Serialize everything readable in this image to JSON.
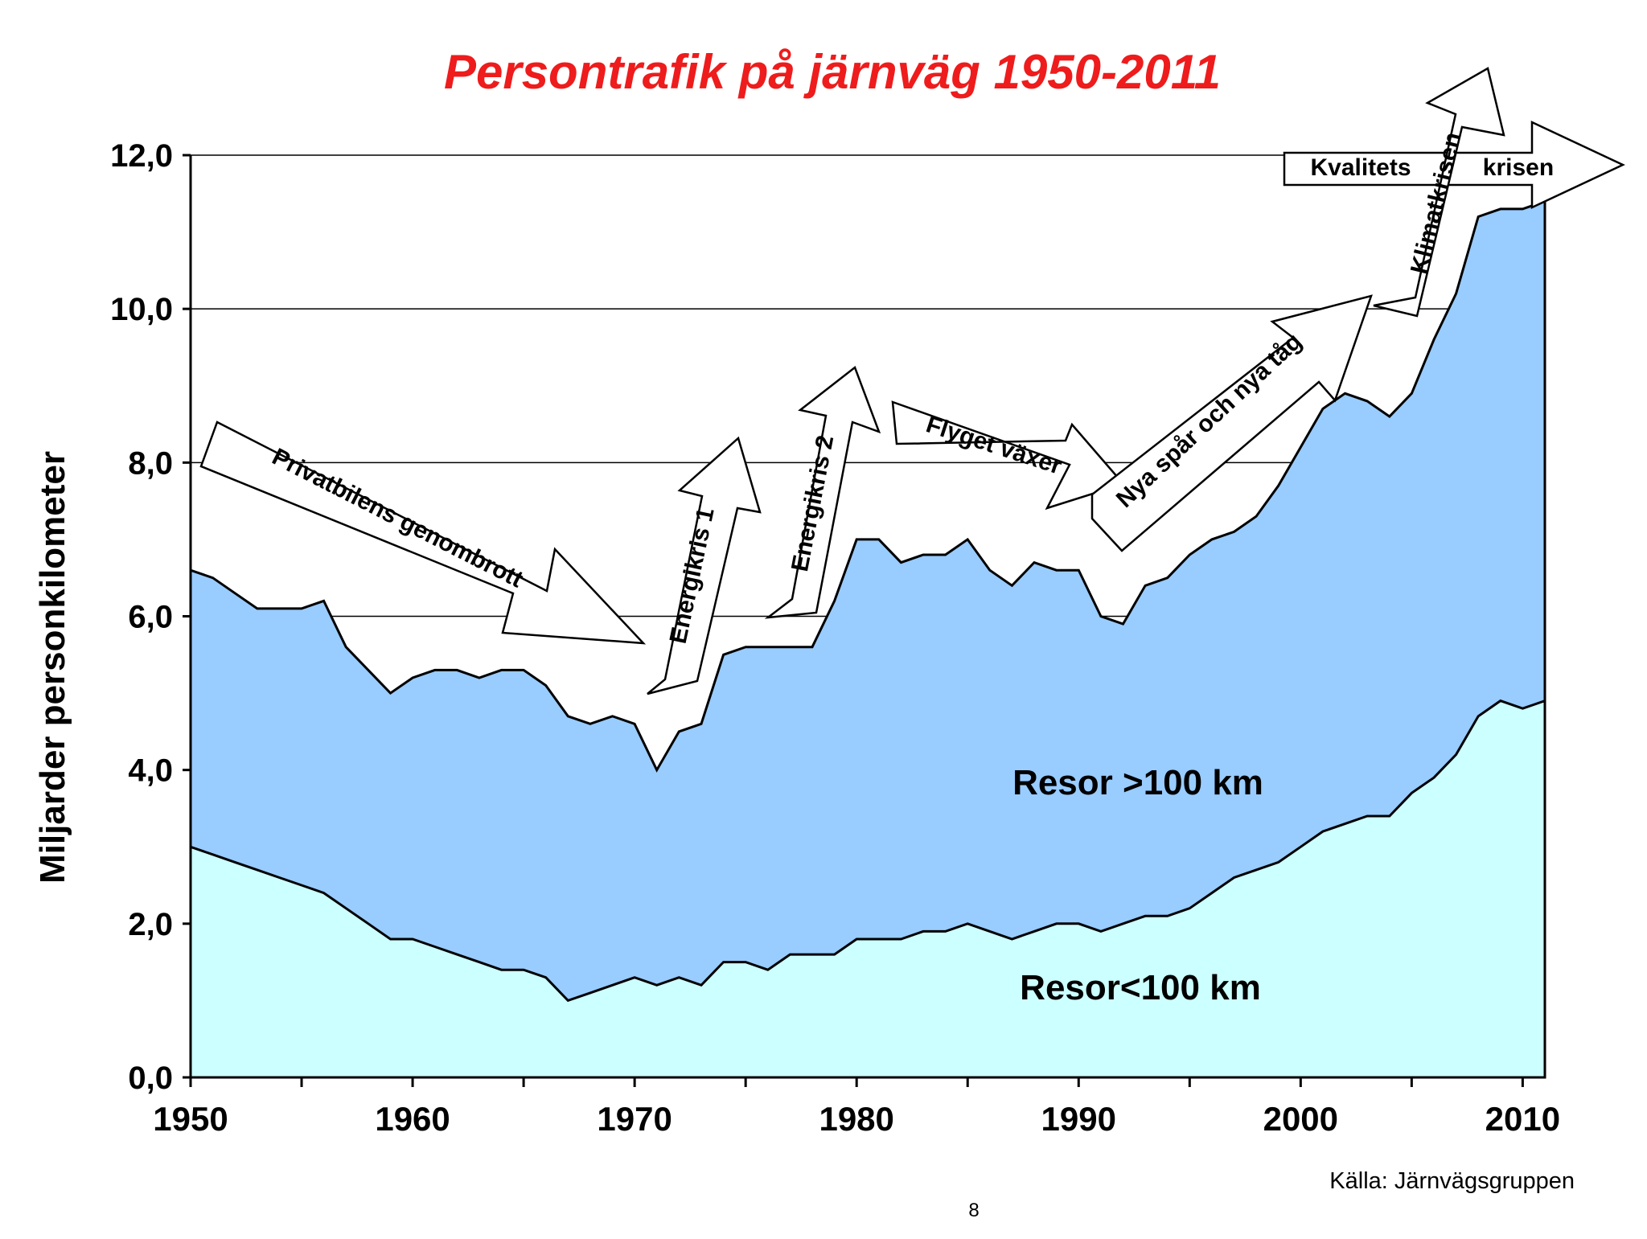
{
  "colors": {
    "title": "#ee1c1c",
    "lower_area": "#ccffff",
    "upper_area": "#99ccff",
    "outline": "#000000",
    "grid": "#000000",
    "arrow_fill": "#ffffff"
  },
  "chart_data": {
    "type": "area",
    "stacked": true,
    "title": "Persontrafik på järnväg 1950-2011",
    "ylabel": "Miljarder personkilometer",
    "xlabel": "",
    "xlim": [
      1950,
      2011
    ],
    "ylim": [
      0,
      12
    ],
    "grid": true,
    "x_ticks": [
      "1950",
      "1960",
      "1970",
      "1980",
      "1990",
      "2000",
      "2010"
    ],
    "y_ticks": [
      "0,0",
      "2,0",
      "4,0",
      "6,0",
      "8,0",
      "10,0",
      "12,0"
    ],
    "x": [
      1950,
      1951,
      1952,
      1953,
      1954,
      1955,
      1956,
      1957,
      1958,
      1959,
      1960,
      1961,
      1962,
      1963,
      1964,
      1965,
      1966,
      1967,
      1968,
      1969,
      1970,
      1971,
      1972,
      1973,
      1974,
      1975,
      1976,
      1977,
      1978,
      1979,
      1980,
      1981,
      1982,
      1983,
      1984,
      1985,
      1986,
      1987,
      1988,
      1989,
      1990,
      1991,
      1992,
      1993,
      1994,
      1995,
      1996,
      1997,
      1998,
      1999,
      2000,
      2001,
      2002,
      2003,
      2004,
      2005,
      2006,
      2007,
      2008,
      2009,
      2010,
      2011
    ],
    "series": [
      {
        "name": "Resor<100 km",
        "label": "Resor<100 km",
        "values": [
          3.0,
          2.9,
          2.8,
          2.7,
          2.6,
          2.5,
          2.4,
          2.2,
          2.0,
          1.8,
          1.8,
          1.7,
          1.6,
          1.5,
          1.4,
          1.4,
          1.3,
          1.0,
          1.1,
          1.2,
          1.3,
          1.2,
          1.3,
          1.2,
          1.5,
          1.5,
          1.4,
          1.6,
          1.6,
          1.6,
          1.8,
          1.8,
          1.8,
          1.9,
          1.9,
          2.0,
          1.9,
          1.8,
          1.9,
          2.0,
          2.0,
          1.9,
          2.0,
          2.1,
          2.1,
          2.2,
          2.4,
          2.6,
          2.7,
          2.8,
          3.0,
          3.2,
          3.3,
          3.4,
          3.4,
          3.7,
          3.9,
          4.2,
          4.7,
          4.9,
          4.8,
          4.9
        ]
      },
      {
        "name": "Resor >100 km",
        "label": "Resor >100 km",
        "total_values": [
          6.6,
          6.5,
          6.3,
          6.1,
          6.1,
          6.1,
          6.2,
          5.6,
          5.3,
          5.0,
          5.2,
          5.3,
          5.3,
          5.2,
          5.3,
          5.3,
          5.1,
          4.7,
          4.6,
          4.7,
          4.6,
          4.0,
          4.5,
          4.6,
          5.5,
          5.6,
          5.6,
          5.6,
          5.6,
          6.2,
          7.0,
          7.0,
          6.7,
          6.8,
          6.8,
          7.0,
          6.6,
          6.4,
          6.7,
          6.6,
          6.6,
          6.0,
          5.9,
          6.4,
          6.5,
          6.8,
          7.0,
          7.1,
          7.3,
          7.7,
          8.2,
          8.7,
          8.9,
          8.8,
          8.6,
          8.9,
          9.6,
          10.2,
          11.2,
          11.3,
          11.3,
          11.4
        ]
      }
    ],
    "annotations": [
      {
        "id": "privatbilens",
        "text": "Privatbilens genombrott"
      },
      {
        "id": "energikris1",
        "text": "Energikris 1"
      },
      {
        "id": "energikris2",
        "text": "Energikris 2"
      },
      {
        "id": "flyget",
        "text": "Flyget växer"
      },
      {
        "id": "nyaspar",
        "text": "Nya spår och nya tåg"
      },
      {
        "id": "klimat",
        "text": "Klimatkrisen"
      },
      {
        "id": "kvalitets",
        "text": "Kvalitets"
      },
      {
        "id": "krisen",
        "text": "krisen"
      }
    ],
    "source": "Källa:  Järnvägsgruppen"
  },
  "page_number": "8"
}
